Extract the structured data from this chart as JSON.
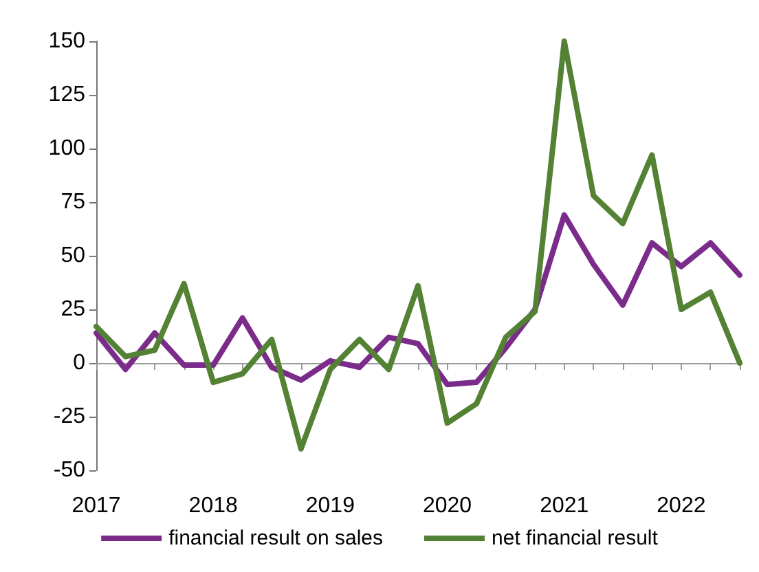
{
  "chart_data": {
    "type": "line",
    "categories": [
      "2017",
      null,
      null,
      null,
      "2018",
      null,
      null,
      null,
      "2019",
      null,
      null,
      null,
      "2020",
      null,
      null,
      null,
      "2021",
      null,
      null,
      null,
      "2022",
      null,
      null
    ],
    "series": [
      {
        "name": "financial result on sales",
        "color": "#7b2c8b",
        "values": [
          14,
          -3,
          14,
          -1,
          -1,
          21,
          -2,
          -8,
          1,
          -2,
          12,
          9,
          -10,
          -9,
          7,
          25,
          69,
          46,
          27,
          56,
          45,
          56,
          41
        ]
      },
      {
        "name": "net financial result",
        "color": "#548235",
        "values": [
          17,
          3,
          6,
          37,
          -9,
          -5,
          11,
          -40,
          -3,
          11,
          -3,
          36,
          -28,
          -19,
          12,
          24,
          150,
          78,
          65,
          97,
          25,
          33,
          0
        ]
      }
    ],
    "ylim": [
      -50,
      150
    ],
    "yticks": [
      -50,
      -25,
      0,
      25,
      50,
      75,
      100,
      125,
      150
    ],
    "legend": "bottom",
    "marker": "none",
    "line_style": "solid"
  }
}
